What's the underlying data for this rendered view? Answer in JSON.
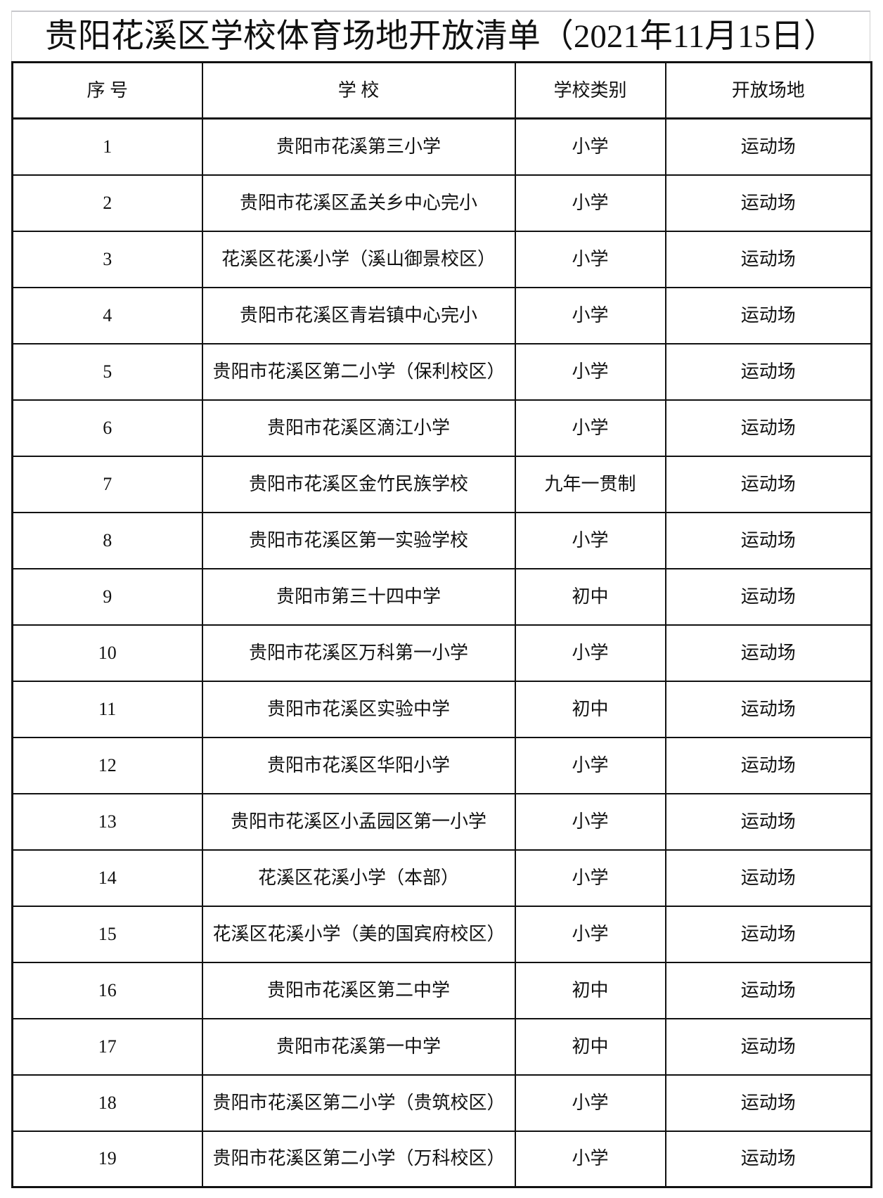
{
  "title": "贵阳花溪区学校体育场地开放清单（2021年11月15日）",
  "headers": [
    "序 号",
    "学  校",
    "学校类别",
    "开放场地"
  ],
  "rows": [
    {
      "no": "1",
      "school": "贵阳市花溪第三小学",
      "type": "小学",
      "venue": "运动场"
    },
    {
      "no": "2",
      "school": "贵阳市花溪区孟关乡中心完小",
      "type": "小学",
      "venue": "运动场"
    },
    {
      "no": "3",
      "school": "花溪区花溪小学（溪山御景校区）",
      "type": "小学",
      "venue": "运动场"
    },
    {
      "no": "4",
      "school": "贵阳市花溪区青岩镇中心完小",
      "type": "小学",
      "venue": "运动场"
    },
    {
      "no": "5",
      "school": "贵阳市花溪区第二小学（保利校区）",
      "type": "小学",
      "venue": "运动场"
    },
    {
      "no": "6",
      "school": "贵阳市花溪区滴江小学",
      "type": "小学",
      "venue": "运动场"
    },
    {
      "no": "7",
      "school": "贵阳市花溪区金竹民族学校",
      "type": "九年一贯制",
      "venue": "运动场"
    },
    {
      "no": "8",
      "school": "贵阳市花溪区第一实验学校",
      "type": "小学",
      "venue": "运动场"
    },
    {
      "no": "9",
      "school": "贵阳市第三十四中学",
      "type": "初中",
      "venue": "运动场"
    },
    {
      "no": "10",
      "school": "贵阳市花溪区万科第一小学",
      "type": "小学",
      "venue": "运动场"
    },
    {
      "no": "11",
      "school": "贵阳市花溪区实验中学",
      "type": "初中",
      "venue": "运动场"
    },
    {
      "no": "12",
      "school": "贵阳市花溪区华阳小学",
      "type": "小学",
      "venue": "运动场"
    },
    {
      "no": "13",
      "school": "贵阳市花溪区小孟园区第一小学",
      "type": "小学",
      "venue": "运动场"
    },
    {
      "no": "14",
      "school": "花溪区花溪小学（本部）",
      "type": "小学",
      "venue": "运动场"
    },
    {
      "no": "15",
      "school": "花溪区花溪小学（美的国宾府校区）",
      "type": "小学",
      "venue": "运动场"
    },
    {
      "no": "16",
      "school": "贵阳市花溪区第二中学",
      "type": "初中",
      "venue": "运动场"
    },
    {
      "no": "17",
      "school": "贵阳市花溪第一中学",
      "type": "初中",
      "venue": "运动场"
    },
    {
      "no": "18",
      "school": "贵阳市花溪区第二小学（贵筑校区）",
      "type": "小学",
      "venue": "运动场"
    },
    {
      "no": "19",
      "school": "贵阳市花溪区第二小学（万科校区）",
      "type": "小学",
      "venue": "运动场"
    }
  ]
}
